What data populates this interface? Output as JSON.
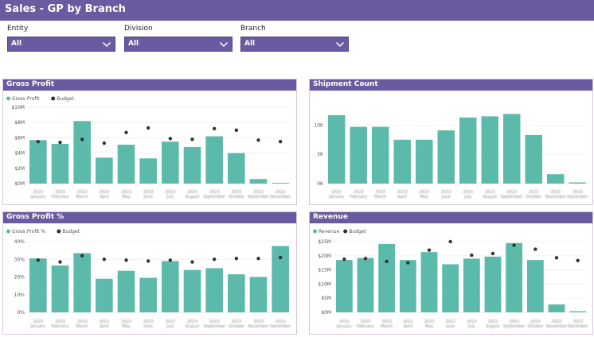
{
  "header": {
    "title": "Sales - GP by Branch"
  },
  "filters": [
    {
      "label": "Entity",
      "value": "All"
    },
    {
      "label": "Division",
      "value": "All"
    },
    {
      "label": "Branch",
      "value": "All"
    }
  ],
  "colors": {
    "accent": "#6a5a9f",
    "bar": "#5bbaa9",
    "marker": "#333333"
  },
  "icons": {
    "dropdown": "chevron-down-icon"
  },
  "chart_data": [
    {
      "id": "gross-profit",
      "type": "bar",
      "title": "Gross Profit",
      "legend": [
        "Gross Profit",
        "Budget"
      ],
      "legend_position": "top-left",
      "categories": [
        "2023 January",
        "2023 February",
        "2023 March",
        "2023 April",
        "2023 May",
        "2023 June",
        "2023 July",
        "2023 August",
        "2023 September",
        "2023 October",
        "2023 November",
        "2023 December"
      ],
      "series": [
        {
          "name": "Gross Profit",
          "values": [
            5.7,
            5.2,
            8.2,
            3.4,
            5.1,
            3.3,
            5.5,
            4.8,
            6.2,
            4.0,
            0.6,
            0.1
          ]
        },
        {
          "name": "Budget",
          "values": [
            5.5,
            5.4,
            5.8,
            5.3,
            6.7,
            7.3,
            5.9,
            5.8,
            7.2,
            7.0,
            5.7,
            5.5
          ]
        }
      ],
      "yticks": [
        "$0M",
        "$2M",
        "$4M",
        "$6M",
        "$8M",
        "$10M"
      ],
      "ylim": [
        0,
        10
      ],
      "grid": true
    },
    {
      "id": "shipment-count",
      "type": "bar",
      "title": "Shipment Count",
      "legend": [],
      "categories": [
        "2023 January",
        "2023 February",
        "2023 March",
        "2023 April",
        "2023 May",
        "2023 June",
        "2023 July",
        "2023 August",
        "2023 September",
        "2023 October",
        "2023 November",
        "2023 December"
      ],
      "series": [
        {
          "name": "",
          "values": [
            11.7,
            9.7,
            9.7,
            7.5,
            7.5,
            9.1,
            11.3,
            11.5,
            11.9,
            8.3,
            1.6,
            0.2
          ]
        }
      ],
      "yticks": [
        "0K",
        "5K",
        "10K"
      ],
      "ylim": [
        0,
        12.5
      ],
      "grid": true
    },
    {
      "id": "gross-profit-pct",
      "type": "bar",
      "title": "Gross Profit %",
      "legend": [
        "Gross Profit %",
        "Budget"
      ],
      "legend_position": "top-left",
      "categories": [
        "2023 January",
        "2023 February",
        "2023 March",
        "2023 April",
        "2023 May",
        "2023 June",
        "2023 July",
        "2023 August",
        "2023 September",
        "2023 October",
        "2023 November",
        "2023 December"
      ],
      "series": [
        {
          "name": "Gross Profit %",
          "values": [
            30.5,
            26.5,
            33.5,
            19,
            23.5,
            19.5,
            29,
            24,
            25,
            21.5,
            20,
            37.5
          ]
        },
        {
          "name": "Budget",
          "values": [
            29.5,
            28.5,
            32,
            30,
            29.5,
            29,
            29.5,
            28.5,
            30,
            30.5,
            30.5,
            31
          ]
        }
      ],
      "yticks": [
        "0%",
        "10%",
        "20%",
        "30%",
        "40%"
      ],
      "ylim": [
        0,
        40
      ],
      "grid": true
    },
    {
      "id": "revenue",
      "type": "bar",
      "title": "Revenue",
      "legend": [
        "Revenue",
        "Budget"
      ],
      "legend_position": "top-left",
      "categories": [
        "2023 January",
        "2023 February",
        "2023 March",
        "2023 April",
        "2023 May",
        "2023 June",
        "2023 July",
        "2023 August",
        "2023 September",
        "2023 October",
        "2023 November",
        "2023 December"
      ],
      "series": [
        {
          "name": "Revenue",
          "values": [
            18.5,
            19.2,
            24.2,
            18.5,
            21.3,
            17.0,
            19.0,
            19.7,
            24.5,
            18.5,
            2.8,
            0.4
          ]
        },
        {
          "name": "Budget",
          "values": [
            18.8,
            19.0,
            18.0,
            17.5,
            22.0,
            25.0,
            20.2,
            20.8,
            23.7,
            22.3,
            19.3,
            18.3
          ]
        }
      ],
      "yticks": [
        "$0M",
        "$5M",
        "$10M",
        "$15M",
        "$20M",
        "$25M"
      ],
      "ylim": [
        0,
        25
      ],
      "grid": true
    }
  ]
}
